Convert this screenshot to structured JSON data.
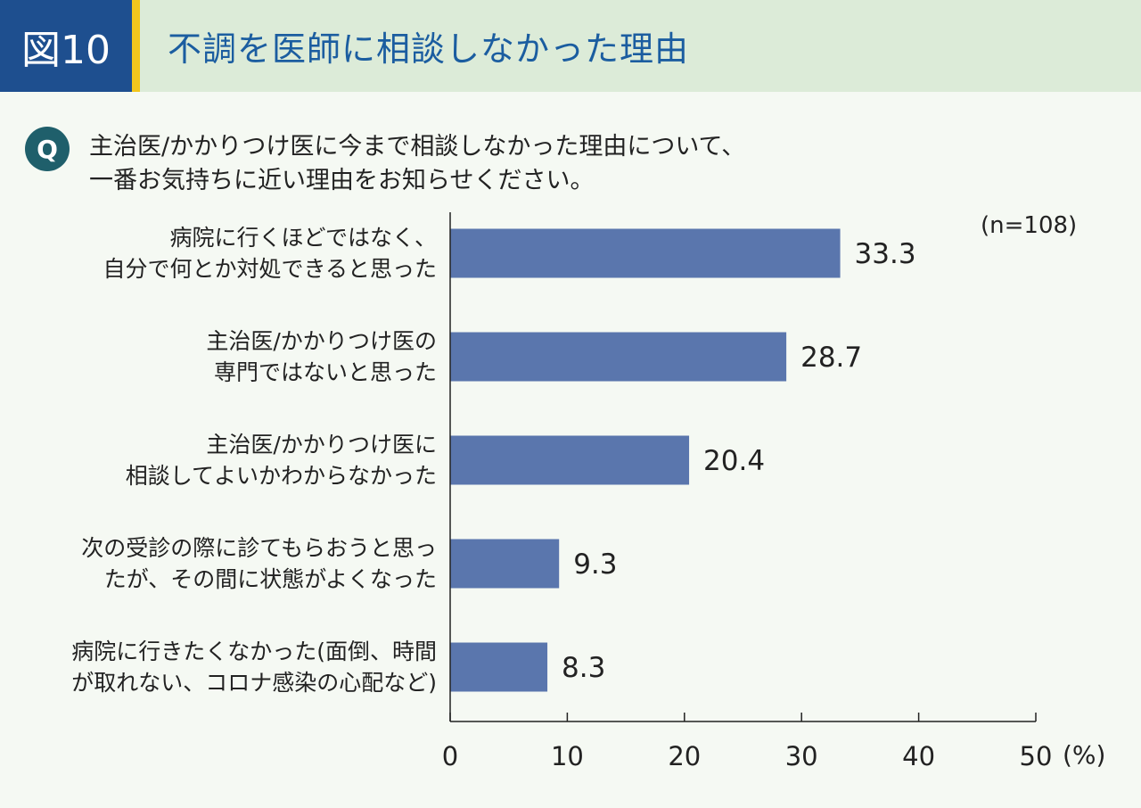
{
  "header": {
    "figure_label": "図10",
    "title": "不調を医師に相談しなかった理由",
    "colors": {
      "badge": "#1e4f8f",
      "accent": "#f2c61c",
      "band": "#dcebd8",
      "title": "#1b5da0"
    }
  },
  "question": {
    "icon": "Q",
    "line1": "主治医/かかりつけ医に今まで相談しなかった理由について、",
    "line2": "一番お気持ちに近い理由をお知らせください。"
  },
  "sample_size": "(n=108)",
  "unit": "(%)",
  "chart_data": {
    "type": "bar",
    "orientation": "horizontal",
    "categories": [
      [
        "病院に行くほどではなく、",
        "自分で何とか対処できると思った"
      ],
      [
        "主治医/かかりつけ医の",
        "専門ではないと思った"
      ],
      [
        "主治医/かかりつけ医に",
        "相談してよいかわからなかった"
      ],
      [
        "次の受診の際に診てもらおうと思っ",
        "たが、その間に状態がよくなった"
      ],
      [
        "病院に行きたくなかった(面倒、時間",
        "が取れない、コロナ感染の心配など)"
      ]
    ],
    "values": [
      33.3,
      28.7,
      20.4,
      9.3,
      8.3
    ],
    "value_labels": [
      "33.3",
      "28.7",
      "20.4",
      "9.3",
      "8.3"
    ],
    "xlim": [
      0,
      50
    ],
    "ticks": [
      "0",
      "10",
      "20",
      "30",
      "40",
      "50"
    ],
    "bar_color": "#5a76ad",
    "grid": false
  }
}
